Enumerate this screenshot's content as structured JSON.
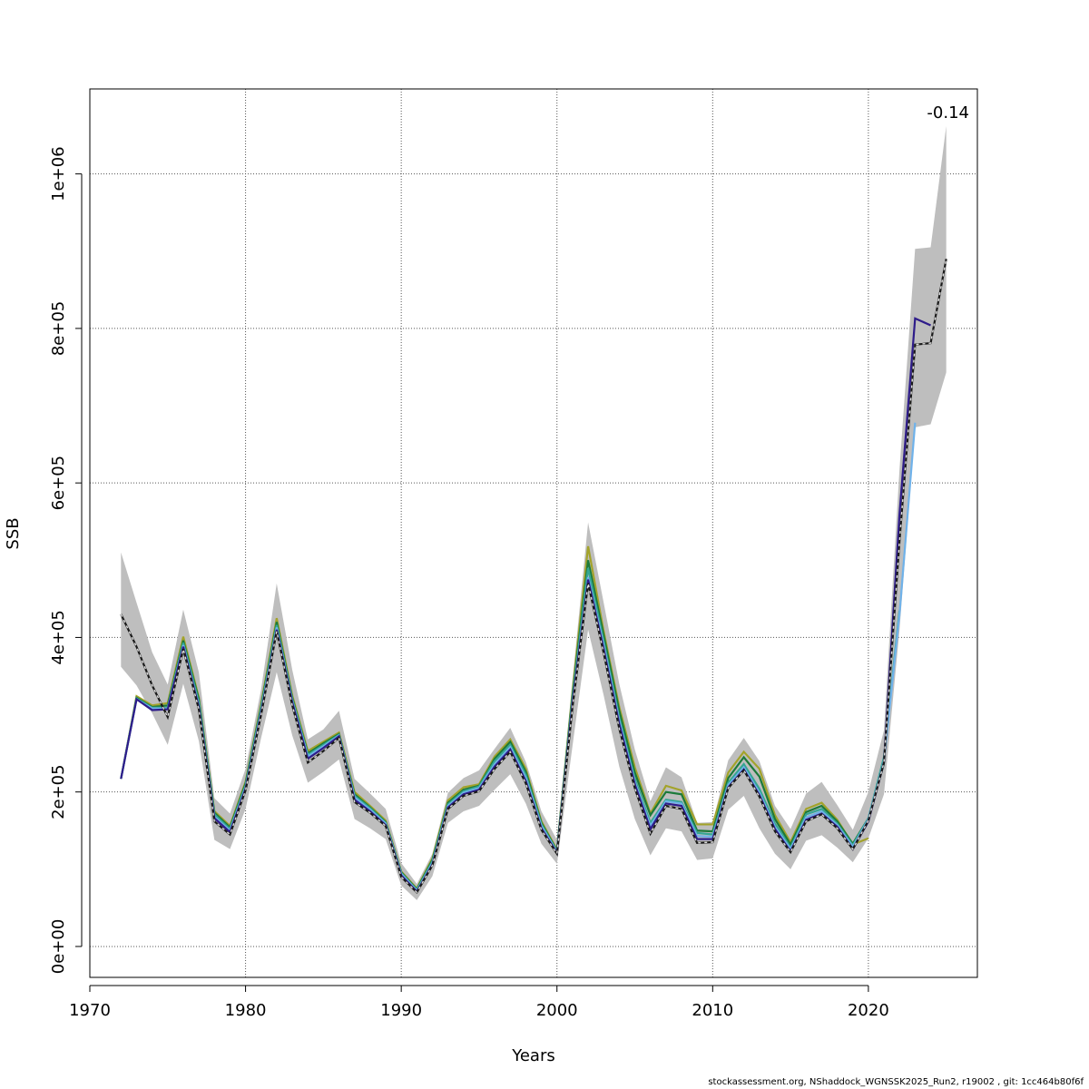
{
  "chart_data": {
    "type": "line",
    "title": "",
    "xlabel": "Years",
    "ylabel": "SSB",
    "xlim": [
      1970,
      2027
    ],
    "ylim": [
      -40000,
      1110000
    ],
    "xticks": [
      1970,
      1980,
      1990,
      2000,
      2010,
      2020
    ],
    "yticks": [
      0,
      200000,
      400000,
      600000,
      800000,
      1000000
    ],
    "ytick_labels": [
      "0e+00",
      "2e+05",
      "4e+05",
      "6e+05",
      "8e+05",
      "1e+06"
    ],
    "grid": true,
    "annotation": "-0.14",
    "confidence_band": {
      "color": "#bebebe",
      "x": [
        1972,
        1973,
        1974,
        1975,
        1976,
        1977,
        1978,
        1979,
        1980,
        1981,
        1982,
        1983,
        1984,
        1985,
        1986,
        1987,
        1988,
        1989,
        1990,
        1991,
        1992,
        1993,
        1994,
        1995,
        1996,
        1997,
        1998,
        1999,
        2000,
        2001,
        2002,
        2003,
        2004,
        2005,
        2006,
        2007,
        2008,
        2009,
        2010,
        2011,
        2012,
        2013,
        2014,
        2015,
        2016,
        2017,
        2018,
        2019,
        2020,
        2021,
        2022,
        2023,
        2024,
        2025
      ],
      "lower": [
        362000,
        338000,
        302000,
        261000,
        340000,
        266000,
        138000,
        126000,
        178000,
        270000,
        355000,
        273000,
        212000,
        226000,
        242000,
        165000,
        153000,
        139000,
        79000,
        60000,
        91000,
        160000,
        175000,
        182000,
        203000,
        223000,
        185000,
        133000,
        107000,
        260000,
        410000,
        325000,
        233000,
        165000,
        118000,
        153000,
        149000,
        112000,
        114000,
        177000,
        195000,
        153000,
        120000,
        100000,
        137000,
        144000,
        128000,
        109000,
        140000,
        197000,
        410000,
        672000,
        676000,
        743000
      ],
      "upper": [
        510000,
        445000,
        381000,
        339000,
        436000,
        355000,
        192000,
        172000,
        230000,
        333000,
        470000,
        358000,
        268000,
        281000,
        305000,
        217000,
        198000,
        178000,
        108000,
        81000,
        120000,
        199000,
        218000,
        228000,
        256000,
        283000,
        239000,
        175000,
        138000,
        345000,
        549000,
        445000,
        340000,
        255000,
        188000,
        232000,
        219000,
        160000,
        161000,
        241000,
        270000,
        240000,
        182000,
        152000,
        198000,
        213000,
        183000,
        151000,
        200000,
        280000,
        618000,
        903000,
        905000,
        1062000
      ]
    },
    "series": [
      {
        "color": "#1a1a1a",
        "dashed": true,
        "x": [
          1972,
          1973,
          1974,
          1975,
          1976,
          1977,
          1978,
          1979,
          1980,
          1981,
          1982,
          1983,
          1984,
          1985,
          1986,
          1987,
          1988,
          1989,
          1990,
          1991,
          1992,
          1993,
          1994,
          1995,
          1996,
          1997,
          1998,
          1999,
          2000,
          2001,
          2002,
          2003,
          2004,
          2005,
          2006,
          2007,
          2008,
          2009,
          2010,
          2011,
          2012,
          2013,
          2014,
          2015,
          2016,
          2017,
          2018,
          2019,
          2020,
          2021,
          2022,
          2023,
          2024,
          2025
        ],
        "values": [
          430000,
          388000,
          338000,
          297000,
          385000,
          307000,
          162000,
          145000,
          202000,
          300000,
          408000,
          312000,
          238000,
          253000,
          270000,
          187000,
          173000,
          156000,
          90000,
          70000,
          105000,
          178000,
          195000,
          201000,
          230000,
          252000,
          211000,
          151000,
          120000,
          310000,
          470000,
          380000,
          282000,
          205000,
          146000,
          182000,
          178000,
          134000,
          135000,
          205000,
          228000,
          194000,
          149000,
          122000,
          162000,
          171000,
          153000,
          126000,
          163000,
          238000,
          525000,
          779000,
          781000,
          890000
        ]
      },
      {
        "color": "#2e1c8a",
        "dashed": false,
        "x": [
          1972,
          1973,
          1974,
          1975,
          1976,
          1977,
          1978,
          1979,
          1980,
          1981,
          1982,
          1983,
          1984,
          1985,
          1986,
          1987,
          1988,
          1989,
          1990,
          1991,
          1992,
          1993,
          1994,
          1995,
          1996,
          1997,
          1998,
          1999,
          2000,
          2001,
          2002,
          2003,
          2004,
          2005,
          2006,
          2007,
          2008,
          2009,
          2010,
          2011,
          2012,
          2013,
          2014,
          2015,
          2016,
          2017,
          2018,
          2019,
          2020,
          2021,
          2022,
          2023,
          2024
        ],
        "values": [
          217000,
          320000,
          306000,
          307000,
          388000,
          310000,
          166000,
          148000,
          204000,
          302000,
          410000,
          316000,
          243000,
          257000,
          272000,
          190000,
          175000,
          157000,
          92000,
          71000,
          106000,
          180000,
          197000,
          203000,
          233000,
          255000,
          214000,
          153000,
          121000,
          315000,
          475000,
          385000,
          288000,
          210000,
          152000,
          185000,
          182000,
          139000,
          139000,
          206000,
          229000,
          196000,
          152000,
          123000,
          164000,
          172000,
          155000,
          126000,
          162000,
          238000,
          560000,
          813000,
          804000
        ]
      },
      {
        "color": "#6fb2ea",
        "dashed": false,
        "x": [
          1972,
          1973,
          1974,
          1975,
          1976,
          1977,
          1978,
          1979,
          1980,
          1981,
          1982,
          1983,
          1984,
          1985,
          1986,
          1987,
          1988,
          1989,
          1990,
          1991,
          1992,
          1993,
          1994,
          1995,
          1996,
          1997,
          1998,
          1999,
          2000,
          2001,
          2002,
          2003,
          2004,
          2005,
          2006,
          2007,
          2008,
          2009,
          2010,
          2011,
          2012,
          2013,
          2014,
          2015,
          2016,
          2017,
          2018,
          2019,
          2020,
          2021,
          2022,
          2023
        ],
        "values": [
          217000,
          320000,
          308000,
          308000,
          390000,
          312000,
          168000,
          150000,
          206000,
          305000,
          413000,
          318000,
          246000,
          259000,
          273000,
          193000,
          177000,
          159000,
          94000,
          72000,
          108000,
          182000,
          199000,
          205000,
          236000,
          258000,
          218000,
          156000,
          122000,
          318000,
          478000,
          390000,
          292000,
          213000,
          156000,
          188000,
          185000,
          143000,
          142000,
          209000,
          232000,
          199000,
          155000,
          126000,
          167000,
          175000,
          157000,
          129000,
          165000,
          240000,
          430000,
          678000
        ]
      },
      {
        "color": "#35a693",
        "dashed": false,
        "x": [
          1972,
          1973,
          1974,
          1975,
          1976,
          1977,
          1978,
          1979,
          1980,
          1981,
          1982,
          1983,
          1984,
          1985,
          1986,
          1987,
          1988,
          1989,
          1990,
          1991,
          1992,
          1993,
          1994,
          1995,
          1996,
          1997,
          1998,
          1999,
          2000,
          2001,
          2002,
          2003,
          2004,
          2005,
          2006,
          2007,
          2008,
          2009,
          2010,
          2011,
          2012,
          2013,
          2014,
          2015,
          2016,
          2017,
          2018,
          2019,
          2020,
          2021,
          2022
        ],
        "values": [
          217000,
          321000,
          309000,
          309000,
          393000,
          316000,
          171000,
          152000,
          208000,
          308000,
          416000,
          320000,
          248000,
          261000,
          274000,
          195000,
          179000,
          160000,
          95000,
          73000,
          110000,
          184000,
          201000,
          207000,
          240000,
          261000,
          222000,
          158000,
          123000,
          320000,
          490000,
          395000,
          296000,
          217000,
          160000,
          190000,
          187000,
          147000,
          145000,
          212000,
          236000,
          204000,
          159000,
          128000,
          171000,
          178000,
          159000,
          131000,
          166000,
          245000,
          435000
        ]
      },
      {
        "color": "#1c7a3a",
        "dashed": false,
        "x": [
          1972,
          1973,
          1974,
          1975,
          1976,
          1977,
          1978,
          1979,
          1980,
          1981,
          1982,
          1983,
          1984,
          1985,
          1986,
          1987,
          1988,
          1989,
          1990,
          1991,
          1992,
          1993,
          1994,
          1995,
          1996,
          1997,
          1998,
          1999,
          2000,
          2001,
          2002,
          2003,
          2004,
          2005,
          2006,
          2007,
          2008,
          2009,
          2010,
          2011,
          2012,
          2013,
          2014,
          2015,
          2016,
          2017,
          2018,
          2019,
          2020,
          2021
        ],
        "values": [
          217000,
          322000,
          310000,
          312000,
          396000,
          320000,
          173000,
          154000,
          211000,
          311000,
          420000,
          322000,
          250000,
          263000,
          275000,
          197000,
          180000,
          161000,
          96000,
          74000,
          112000,
          186000,
          203000,
          208000,
          243000,
          265000,
          226000,
          160000,
          124000,
          326000,
          500000,
          403000,
          305000,
          225000,
          170000,
          200000,
          197000,
          150000,
          149000,
          218000,
          245000,
          220000,
          165000,
          132000,
          174000,
          182000,
          162000,
          133000,
          166000,
          237000
        ]
      },
      {
        "color": "#a3a32a",
        "dashed": false,
        "x": [
          1972,
          1973,
          1974,
          1975,
          1976,
          1977,
          1978,
          1979,
          1980,
          1981,
          1982,
          1983,
          1984,
          1985,
          1986,
          1987,
          1988,
          1989,
          1990,
          1991,
          1992,
          1993,
          1994,
          1995,
          1996,
          1997,
          1998,
          1999,
          2000,
          2001,
          2002,
          2003,
          2004,
          2005,
          2006,
          2007,
          2008,
          2009,
          2010,
          2011,
          2012,
          2013,
          2014,
          2015,
          2016,
          2017,
          2018,
          2019,
          2020
        ],
        "values": [
          217000,
          324000,
          312000,
          315000,
          401000,
          322000,
          175000,
          156000,
          213000,
          314000,
          425000,
          325000,
          253000,
          265000,
          277000,
          200000,
          182000,
          163000,
          97000,
          75000,
          114000,
          189000,
          206000,
          210000,
          246000,
          268000,
          230000,
          162000,
          125000,
          330000,
          518000,
          408000,
          310000,
          232000,
          172000,
          208000,
          202000,
          158000,
          158000,
          225000,
          252000,
          230000,
          170000,
          135000,
          178000,
          186000,
          164000,
          132000,
          140000
        ]
      }
    ]
  },
  "footer": "stockassessment.org, NShaddock_WGNSSK2025_Run2, r19002 , git: 1cc464b80f6f"
}
